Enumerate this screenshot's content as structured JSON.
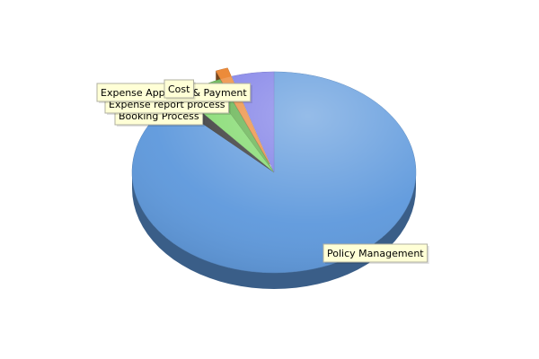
{
  "chart_data": {
    "type": "pie",
    "style": "3d",
    "legend": "none",
    "slices": [
      {
        "label": "Policy Management",
        "value": 87.2,
        "color": "#5d98dc",
        "exploded": false
      },
      {
        "label": "Booking Process",
        "value": 1.6,
        "color": "#333333",
        "exploded": false
      },
      {
        "label": "Expense report process",
        "value": 3.5,
        "color": "#7fd96a",
        "exploded": false
      },
      {
        "label": "Expense Approval & Payment",
        "value": 1.5,
        "color": "#5fb04a",
        "exploded": false
      },
      {
        "label": "Cost",
        "value": 1.4,
        "color": "#ec8b3a",
        "exploded": true
      },
      {
        "label": "",
        "value": 4.8,
        "color": "#7a7ae6",
        "exploded": false
      }
    ],
    "label_style": {
      "background": "#ffffd6",
      "border": "#b0b0a0",
      "text": "#000000"
    }
  }
}
